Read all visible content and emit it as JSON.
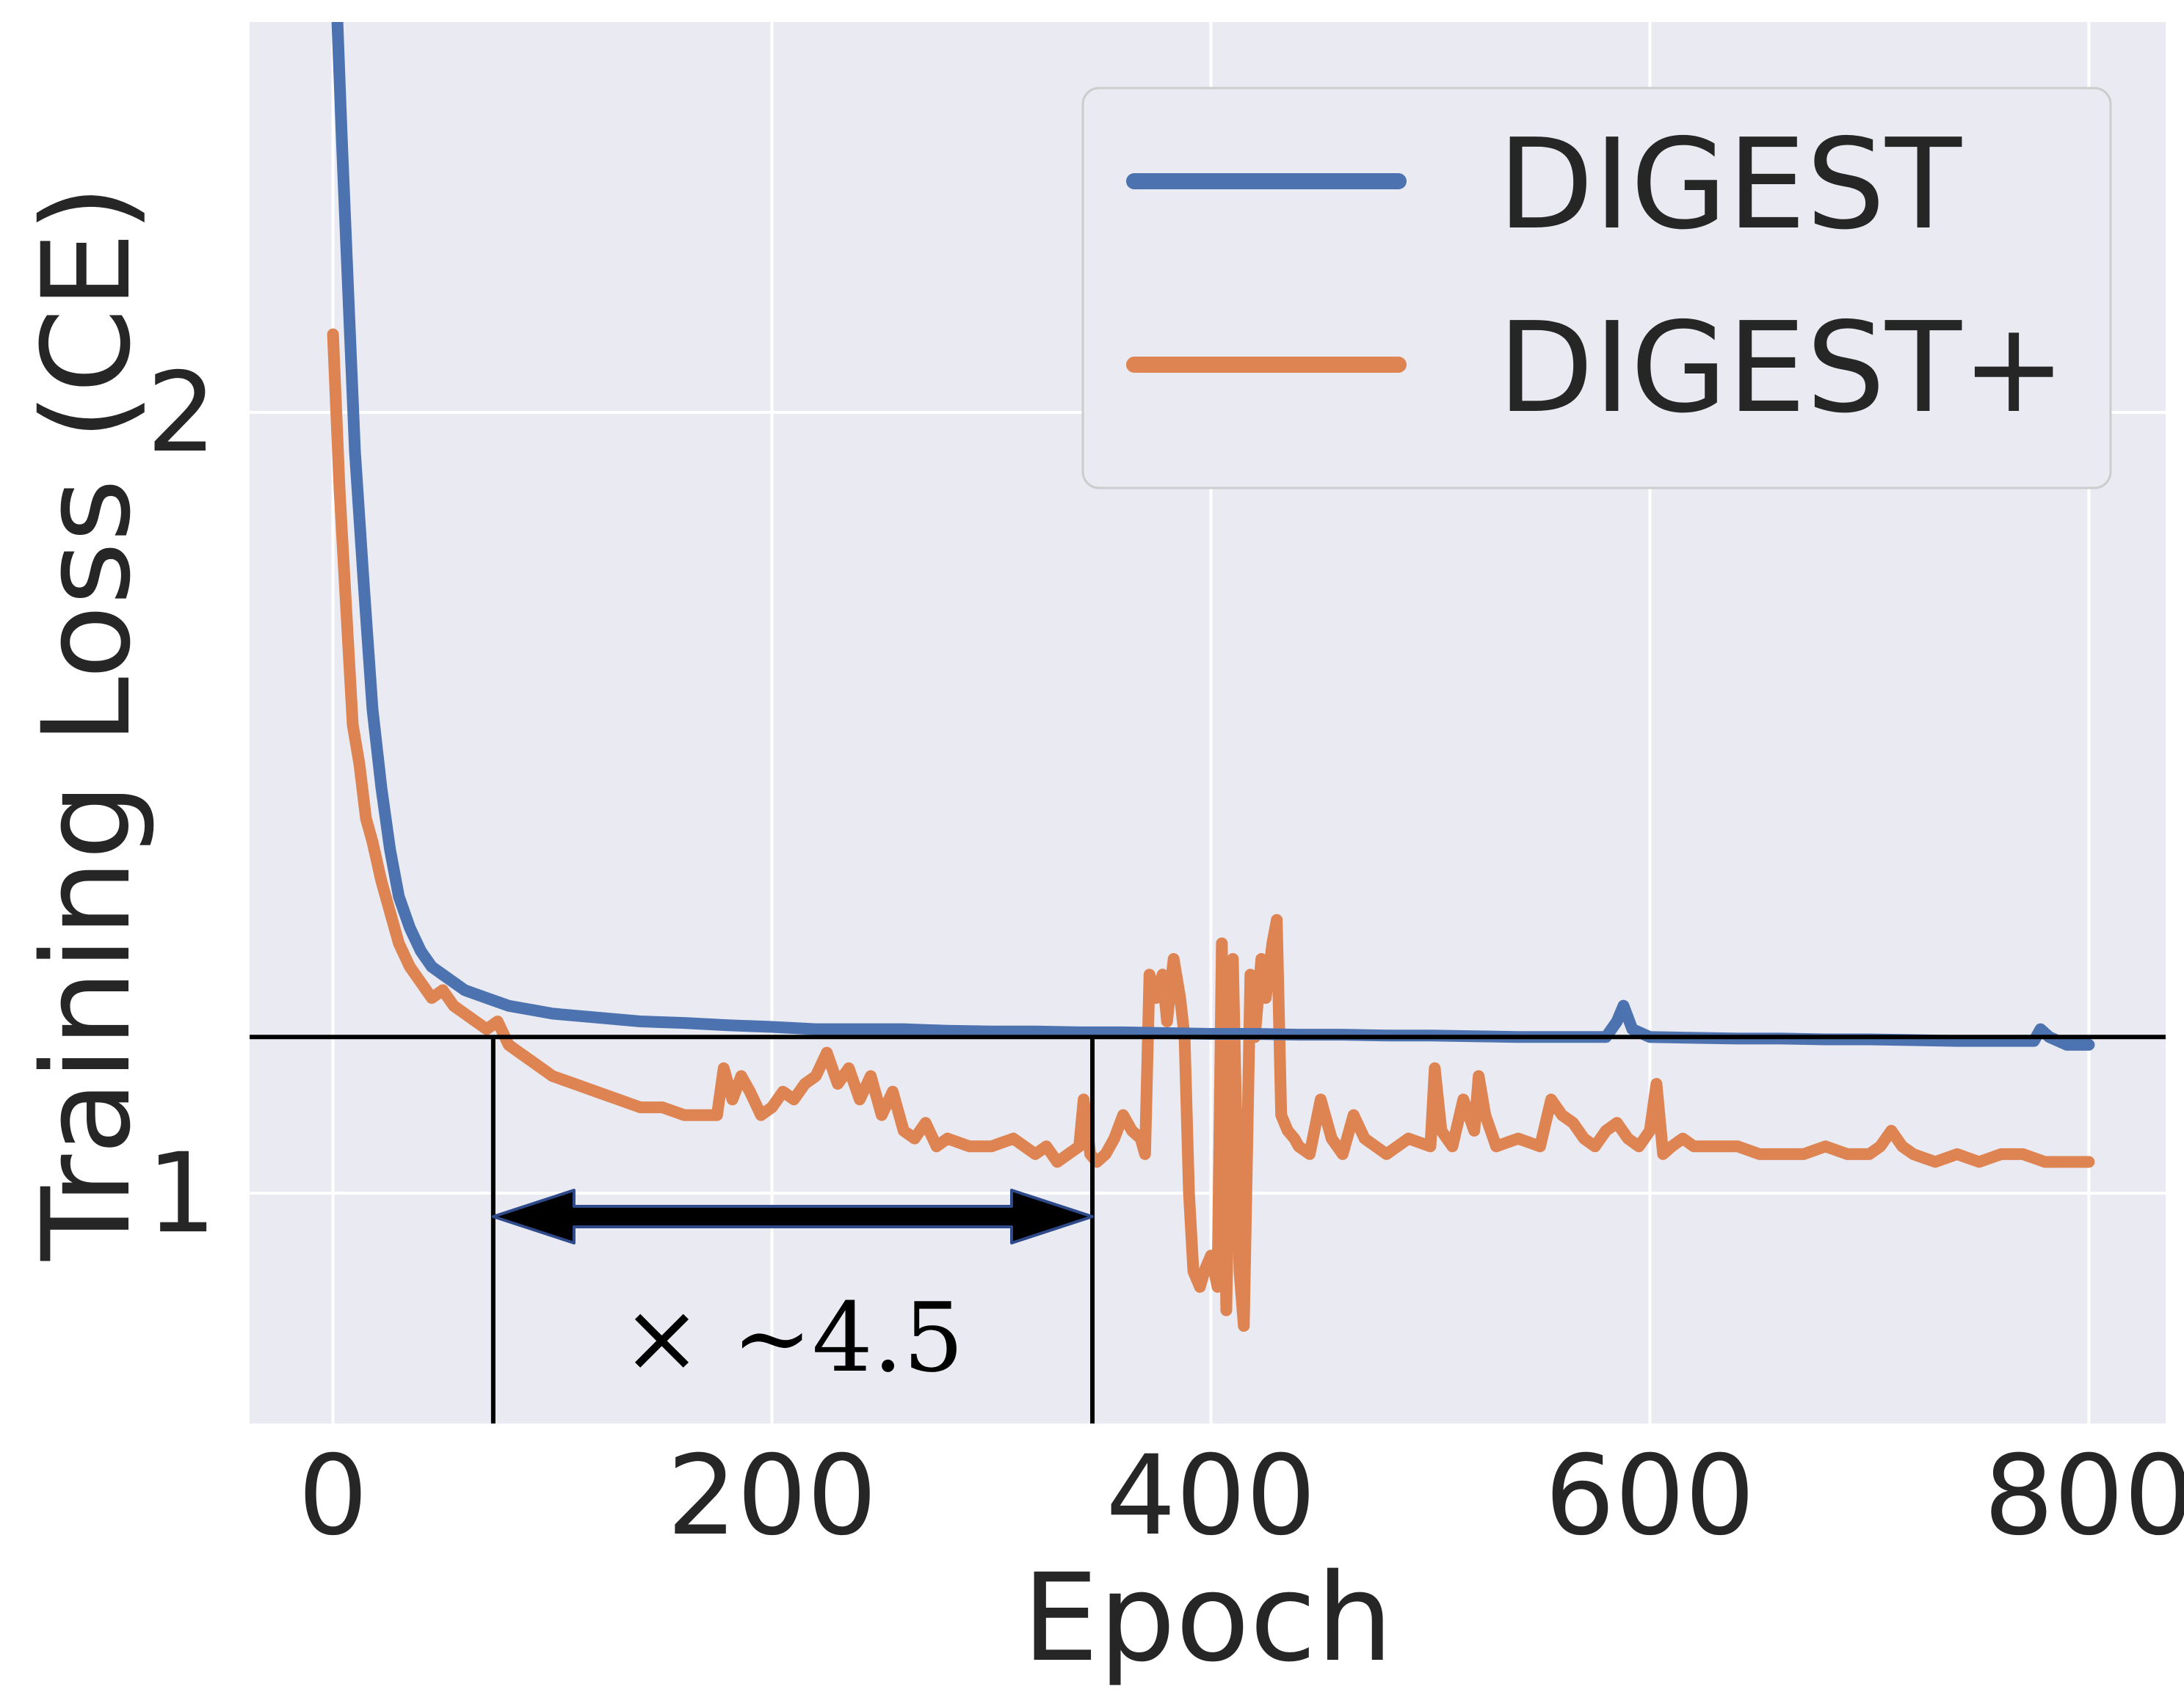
{
  "chart_data": {
    "type": "line",
    "title": "",
    "xlabel": "Epoch",
    "ylabel": "Training Loss (CE)",
    "xlim": [
      -38,
      835
    ],
    "ylim": [
      0.705,
      2.5
    ],
    "x_ticks": [
      0,
      200,
      400,
      600,
      800
    ],
    "x_tick_labels": [
      "0",
      "200",
      "400",
      "600",
      "800"
    ],
    "y_ticks": [
      1,
      2
    ],
    "y_tick_labels": [
      "1",
      "2"
    ],
    "grid": true,
    "background": "#eaeaf2",
    "legend": {
      "position": "upper-right"
    },
    "series": [
      {
        "name": "DIGEST",
        "color": "#4c72b0",
        "x": [
          0,
          2,
          4,
          7,
          10,
          14,
          18,
          22,
          26,
          30,
          35,
          40,
          45,
          50,
          60,
          70,
          80,
          90,
          100,
          120,
          140,
          160,
          180,
          200,
          220,
          240,
          260,
          280,
          300,
          320,
          340,
          360,
          380,
          400,
          420,
          440,
          460,
          480,
          500,
          520,
          540,
          560,
          580,
          585,
          588,
          592,
          600,
          620,
          640,
          660,
          680,
          700,
          720,
          740,
          760,
          775,
          778,
          782,
          790,
          800
        ],
        "values": [
          2.6,
          2.5,
          2.35,
          2.15,
          1.95,
          1.78,
          1.62,
          1.52,
          1.44,
          1.38,
          1.34,
          1.31,
          1.29,
          1.28,
          1.26,
          1.25,
          1.24,
          1.235,
          1.23,
          1.225,
          1.22,
          1.218,
          1.215,
          1.213,
          1.21,
          1.21,
          1.21,
          1.208,
          1.207,
          1.207,
          1.206,
          1.206,
          1.205,
          1.204,
          1.204,
          1.203,
          1.203,
          1.202,
          1.202,
          1.201,
          1.2,
          1.2,
          1.2,
          1.22,
          1.24,
          1.21,
          1.2,
          1.199,
          1.198,
          1.198,
          1.197,
          1.197,
          1.196,
          1.195,
          1.195,
          1.195,
          1.21,
          1.2,
          1.19,
          1.19
        ]
      },
      {
        "name": "DIGEST+",
        "color": "#dd8452",
        "x": [
          0,
          3,
          6,
          9,
          12,
          15,
          18,
          22,
          26,
          30,
          35,
          40,
          45,
          50,
          55,
          60,
          65,
          70,
          75,
          80,
          85,
          90,
          95,
          100,
          110,
          120,
          130,
          140,
          150,
          160,
          170,
          175,
          178,
          182,
          186,
          190,
          195,
          200,
          205,
          210,
          215,
          220,
          225,
          230,
          235,
          240,
          245,
          250,
          255,
          260,
          265,
          270,
          275,
          280,
          290,
          300,
          310,
          320,
          325,
          330,
          335,
          340,
          342,
          345,
          348,
          352,
          356,
          360,
          364,
          368,
          370,
          372,
          375,
          378,
          380,
          383,
          386,
          388,
          390,
          392,
          395,
          397,
          400,
          403,
          405,
          407,
          410,
          413,
          415,
          418,
          420,
          423,
          425,
          428,
          430,
          432,
          435,
          438,
          440,
          445,
          450,
          455,
          460,
          465,
          470,
          480,
          490,
          500,
          502,
          505,
          510,
          515,
          520,
          522,
          525,
          530,
          540,
          550,
          555,
          560,
          565,
          570,
          575,
          580,
          585,
          590,
          595,
          600,
          603,
          606,
          610,
          615,
          620,
          630,
          640,
          650,
          660,
          670,
          680,
          690,
          700,
          705,
          710,
          715,
          720,
          730,
          740,
          750,
          760,
          770,
          780,
          790,
          800
        ],
        "values": [
          2.1,
          1.9,
          1.75,
          1.6,
          1.55,
          1.48,
          1.45,
          1.4,
          1.36,
          1.32,
          1.29,
          1.27,
          1.25,
          1.26,
          1.24,
          1.23,
          1.22,
          1.21,
          1.22,
          1.19,
          1.18,
          1.17,
          1.16,
          1.15,
          1.14,
          1.13,
          1.12,
          1.11,
          1.11,
          1.1,
          1.1,
          1.1,
          1.16,
          1.12,
          1.15,
          1.13,
          1.1,
          1.11,
          1.13,
          1.12,
          1.14,
          1.15,
          1.18,
          1.14,
          1.16,
          1.12,
          1.15,
          1.1,
          1.13,
          1.08,
          1.07,
          1.09,
          1.06,
          1.07,
          1.06,
          1.06,
          1.07,
          1.05,
          1.06,
          1.04,
          1.05,
          1.06,
          1.12,
          1.05,
          1.04,
          1.05,
          1.07,
          1.1,
          1.08,
          1.07,
          1.05,
          1.28,
          1.25,
          1.28,
          1.22,
          1.3,
          1.25,
          1.2,
          1.0,
          0.9,
          0.88,
          0.9,
          0.92,
          0.88,
          1.32,
          0.85,
          1.3,
          0.9,
          0.83,
          1.28,
          1.2,
          1.3,
          1.25,
          1.32,
          1.35,
          1.1,
          1.08,
          1.07,
          1.06,
          1.05,
          1.12,
          1.07,
          1.05,
          1.1,
          1.07,
          1.05,
          1.07,
          1.06,
          1.16,
          1.08,
          1.06,
          1.12,
          1.08,
          1.15,
          1.1,
          1.06,
          1.07,
          1.06,
          1.12,
          1.1,
          1.09,
          1.07,
          1.06,
          1.08,
          1.09,
          1.07,
          1.06,
          1.08,
          1.14,
          1.05,
          1.06,
          1.07,
          1.06,
          1.06,
          1.06,
          1.05,
          1.05,
          1.05,
          1.06,
          1.05,
          1.05,
          1.06,
          1.08,
          1.06,
          1.05,
          1.04,
          1.05,
          1.04,
          1.05,
          1.05,
          1.04,
          1.04,
          1.04
        ]
      }
    ],
    "annotations": {
      "reference_line_y": 1.2,
      "interval_x": [
        73,
        346
      ],
      "interval_label": "× ~4.5",
      "arrow_y": 0.97
    }
  }
}
